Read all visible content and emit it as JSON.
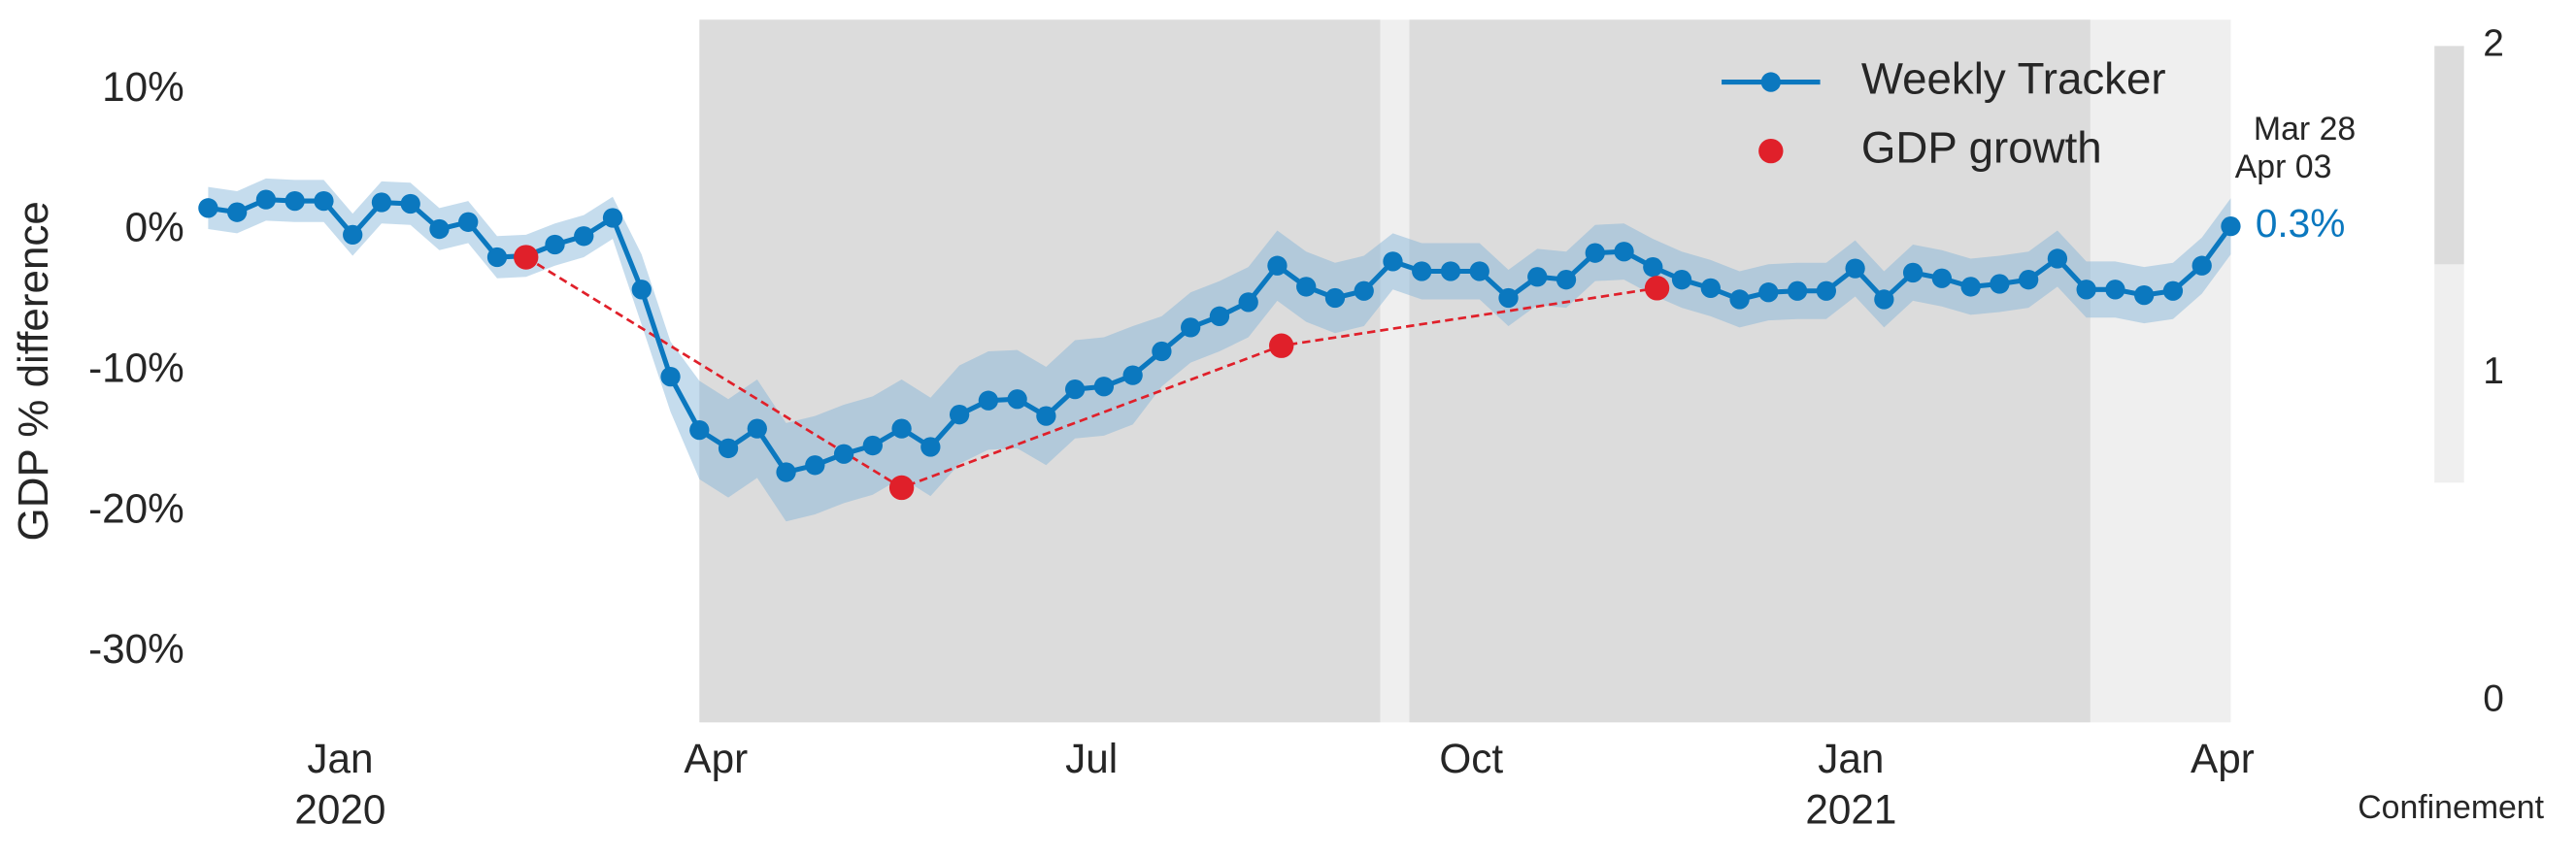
{
  "chart_data": {
    "type": "line",
    "y_label": "GDP % difference",
    "x": [
      "2019-11-30",
      "2019-12-07",
      "2019-12-14",
      "2019-12-21",
      "2019-12-28",
      "2020-01-04",
      "2020-01-11",
      "2020-01-18",
      "2020-01-25",
      "2020-02-01",
      "2020-02-08",
      "2020-02-15",
      "2020-02-22",
      "2020-02-29",
      "2020-03-07",
      "2020-03-14",
      "2020-03-21",
      "2020-03-28",
      "2020-04-04",
      "2020-04-11",
      "2020-04-18",
      "2020-04-25",
      "2020-05-02",
      "2020-05-09",
      "2020-05-16",
      "2020-05-23",
      "2020-05-30",
      "2020-06-06",
      "2020-06-13",
      "2020-06-20",
      "2020-06-27",
      "2020-07-04",
      "2020-07-11",
      "2020-07-18",
      "2020-07-25",
      "2020-08-01",
      "2020-08-08",
      "2020-08-15",
      "2020-08-22",
      "2020-08-29",
      "2020-09-05",
      "2020-09-12",
      "2020-09-19",
      "2020-09-26",
      "2020-10-03",
      "2020-10-10",
      "2020-10-17",
      "2020-10-24",
      "2020-10-31",
      "2020-11-07",
      "2020-11-14",
      "2020-11-21",
      "2020-11-28",
      "2020-12-05",
      "2020-12-12",
      "2020-12-19",
      "2020-12-26",
      "2021-01-02",
      "2021-01-09",
      "2021-01-16",
      "2021-01-23",
      "2021-01-30",
      "2021-02-06",
      "2021-02-13",
      "2021-02-20",
      "2021-02-27",
      "2021-03-06",
      "2021-03-13",
      "2021-03-20",
      "2021-03-27",
      "2021-04-03"
    ],
    "xlim": [
      "2019-11-25",
      "2021-04-03"
    ],
    "xticks": [
      {
        "value": "2020-01-01",
        "label": "Jan"
      },
      {
        "value": "2020-04-01",
        "label": "Apr"
      },
      {
        "value": "2020-07-01",
        "label": "Jul"
      },
      {
        "value": "2020-10-01",
        "label": "Oct"
      },
      {
        "value": "2021-01-01",
        "label": "Jan"
      },
      {
        "value": "2021-04-01",
        "label": "Apr"
      }
    ],
    "year_labels": [
      {
        "value": "2020-01-01",
        "label": "2020"
      },
      {
        "value": "2021-01-01",
        "label": "2021"
      }
    ],
    "ylim": [
      -35,
      15
    ],
    "yticks": [
      {
        "value": 10,
        "label": "10%"
      },
      {
        "value": 0,
        "label": "0%"
      },
      {
        "value": -10,
        "label": "-10%"
      },
      {
        "value": -20,
        "label": "-20%"
      },
      {
        "value": -30,
        "label": "-30%"
      }
    ],
    "legend": "upper right",
    "series": [
      {
        "name": "Weekly Tracker",
        "color": "#0b78bf",
        "band_color": "#7fb2d8",
        "values": [
          1.6,
          1.3,
          2.2,
          2.1,
          2.1,
          -0.3,
          2.0,
          1.9,
          0.1,
          0.6,
          -1.9,
          -1.8,
          -1.0,
          -0.4,
          0.9,
          -4.2,
          -10.4,
          -14.2,
          -15.5,
          -14.1,
          -17.2,
          -16.7,
          -15.9,
          -15.3,
          -14.1,
          -15.4,
          -13.1,
          -12.1,
          -12.0,
          -13.2,
          -11.3,
          -11.1,
          -10.3,
          -8.6,
          -6.9,
          -6.1,
          -5.1,
          -2.5,
          -4.0,
          -4.8,
          -4.3,
          -2.2,
          -2.9,
          -2.9,
          -2.9,
          -4.8,
          -3.3,
          -3.5,
          -1.6,
          -1.5,
          -2.6,
          -3.5,
          -4.1,
          -4.9,
          -4.4,
          -4.3,
          -4.3,
          -2.7,
          -4.9,
          -3.0,
          -3.4,
          -4.0,
          -3.8,
          -3.5,
          -2.0,
          -4.2,
          -4.2,
          -4.6,
          -4.3,
          -2.5,
          0.3
        ],
        "errors": [
          1.5,
          1.5,
          1.5,
          1.5,
          1.5,
          1.5,
          1.5,
          1.5,
          1.5,
          1.5,
          1.5,
          1.5,
          1.5,
          1.5,
          1.5,
          2.5,
          2.5,
          3.5,
          3.5,
          3.5,
          3.5,
          3.5,
          3.5,
          3.5,
          3.5,
          3.5,
          3.5,
          3.5,
          3.5,
          3.5,
          3.5,
          3.5,
          3.5,
          2.5,
          2.5,
          2.5,
          2.5,
          2.5,
          2.5,
          2.5,
          2.5,
          2,
          2,
          2,
          2,
          2,
          2,
          2,
          2,
          2,
          2,
          2,
          2,
          2,
          2,
          2,
          2,
          2,
          2,
          2,
          2,
          2,
          2,
          2,
          2,
          2,
          2,
          2,
          2,
          2,
          2
        ]
      },
      {
        "name": "GDP growth",
        "color": "#e0202a",
        "dashed": true,
        "x": [
          "2020-02-15",
          "2020-05-16",
          "2020-08-16",
          "2020-11-15"
        ],
        "values": [
          -1.9,
          -18.3,
          -8.2,
          -4.1
        ]
      }
    ],
    "annotation": {
      "lines": [
        "Mar 28",
        "Apr 03"
      ],
      "text": "0.3%"
    },
    "shading": [
      {
        "start": "2020-03-28",
        "end": "2020-09-09",
        "level": 2
      },
      {
        "start": "2020-09-09",
        "end": "2020-09-16",
        "level": 1
      },
      {
        "start": "2020-09-16",
        "end": "2021-02-28",
        "level": 2
      },
      {
        "start": "2021-02-28",
        "end": "2021-04-03",
        "level": 1
      }
    ],
    "colorbar": {
      "label": "Confinement",
      "lim": [
        0,
        2
      ],
      "ticks": [
        0,
        1,
        2
      ],
      "colors": [
        "#ffffff",
        "#efefef",
        "#dcdcdc"
      ]
    }
  }
}
